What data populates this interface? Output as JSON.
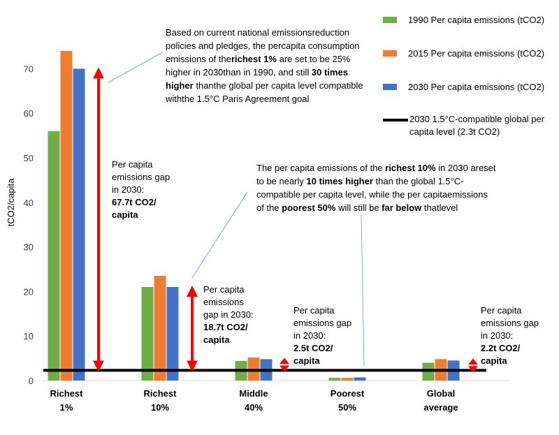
{
  "chart_data": {
    "type": "bar",
    "ylabel": "tCO2/capita",
    "ylim": [
      0,
      80
    ],
    "yticks": [
      0,
      10,
      20,
      30,
      40,
      50,
      60,
      70
    ],
    "categories": [
      "Richest 1%",
      "Richest 10%",
      "Middle 40%",
      "Poorest 50%",
      "Global average"
    ],
    "series": [
      {
        "name": "1990 Per capita emissions (tCO2)",
        "color": "#70AD47",
        "values": [
          56,
          21,
          4.4,
          0.6,
          4.0
        ]
      },
      {
        "name": "2015 Per capita emissions (tCO2)",
        "color": "#ED7D31",
        "values": [
          74,
          23.5,
          5.2,
          0.6,
          4.8
        ]
      },
      {
        "name": "2030 Per capita emissions (tCO2)",
        "color": "#4472C4",
        "values": [
          70,
          21,
          4.8,
          0.7,
          4.5
        ]
      }
    ],
    "reference_line": {
      "name": "2030 1.5°C-compatible global per capita level (2.3t CO2)",
      "value": 2.3,
      "color": "#000000"
    },
    "gap_arrows": [
      {
        "category": "Richest 1%",
        "from": 2.3,
        "to": 70,
        "lines": [
          "Per capita",
          "emissions gap",
          "in 2030:"
        ],
        "bold": [
          "67.7t CO2/",
          "capita"
        ]
      },
      {
        "category": "Richest 10%",
        "from": 2.3,
        "to": 21,
        "lines": [
          "Per capita",
          "emissions",
          "gap in 2030:"
        ],
        "bold": [
          "18.7t CO2/",
          "capita"
        ]
      },
      {
        "category": "Middle 40%",
        "from": 2.3,
        "to": 4.8,
        "lines": [
          "Per capita",
          "emissions gap",
          "in 2030:"
        ],
        "bold": [
          "2.5t CO2/",
          "capita"
        ]
      },
      {
        "category": "Global average",
        "from": 2.3,
        "to": 4.5,
        "lines": [
          "Per capita",
          "emissions gap",
          "in 2030:"
        ],
        "bold": [
          "2.2t CO2/",
          "capita"
        ]
      }
    ],
    "arrow_color": "#FF0000",
    "annotation_1": [
      {
        "t": "Based on current national emissions",
        "b": false
      },
      {
        "t": "reduction policies and pledges, the per",
        "b": false
      },
      {
        "t": "capita consumption emissions of the",
        "b": false
      },
      {
        "t": "richest 1%",
        "b": true
      },
      {
        "t": " are set to be 25% higher in 2030",
        "b": false
      },
      {
        "t": "than in 1990, and still ",
        "b": false
      },
      {
        "t": "30 times higher",
        "b": true
      },
      {
        "t": " than",
        "b": false
      },
      {
        "t": "the global per capita level compatible with",
        "b": false
      },
      {
        "t": "the 1.5°C Paris Agreement goal",
        "b": false
      }
    ],
    "annotation_2": [
      {
        "t": "The per capita emissions of the ",
        "b": false
      },
      {
        "t": "richest 10%",
        "b": true
      },
      {
        "t": " in 2030 are",
        "b": false
      },
      {
        "t": "set to be nearly ",
        "b": false
      },
      {
        "t": "10 times higher",
        "b": true
      },
      {
        "t": " than the global 1.5°C-",
        "b": false
      },
      {
        "t": "compatible per capita level, while the per capita",
        "b": false
      },
      {
        "t": "emissions of the ",
        "b": false
      },
      {
        "t": "poorest 50%",
        "b": true
      },
      {
        "t": " will still be ",
        "b": false
      },
      {
        "t": "far below",
        "b": true
      },
      {
        "t": " that",
        "b": false
      },
      {
        "t": "level",
        "b": false
      }
    ]
  }
}
